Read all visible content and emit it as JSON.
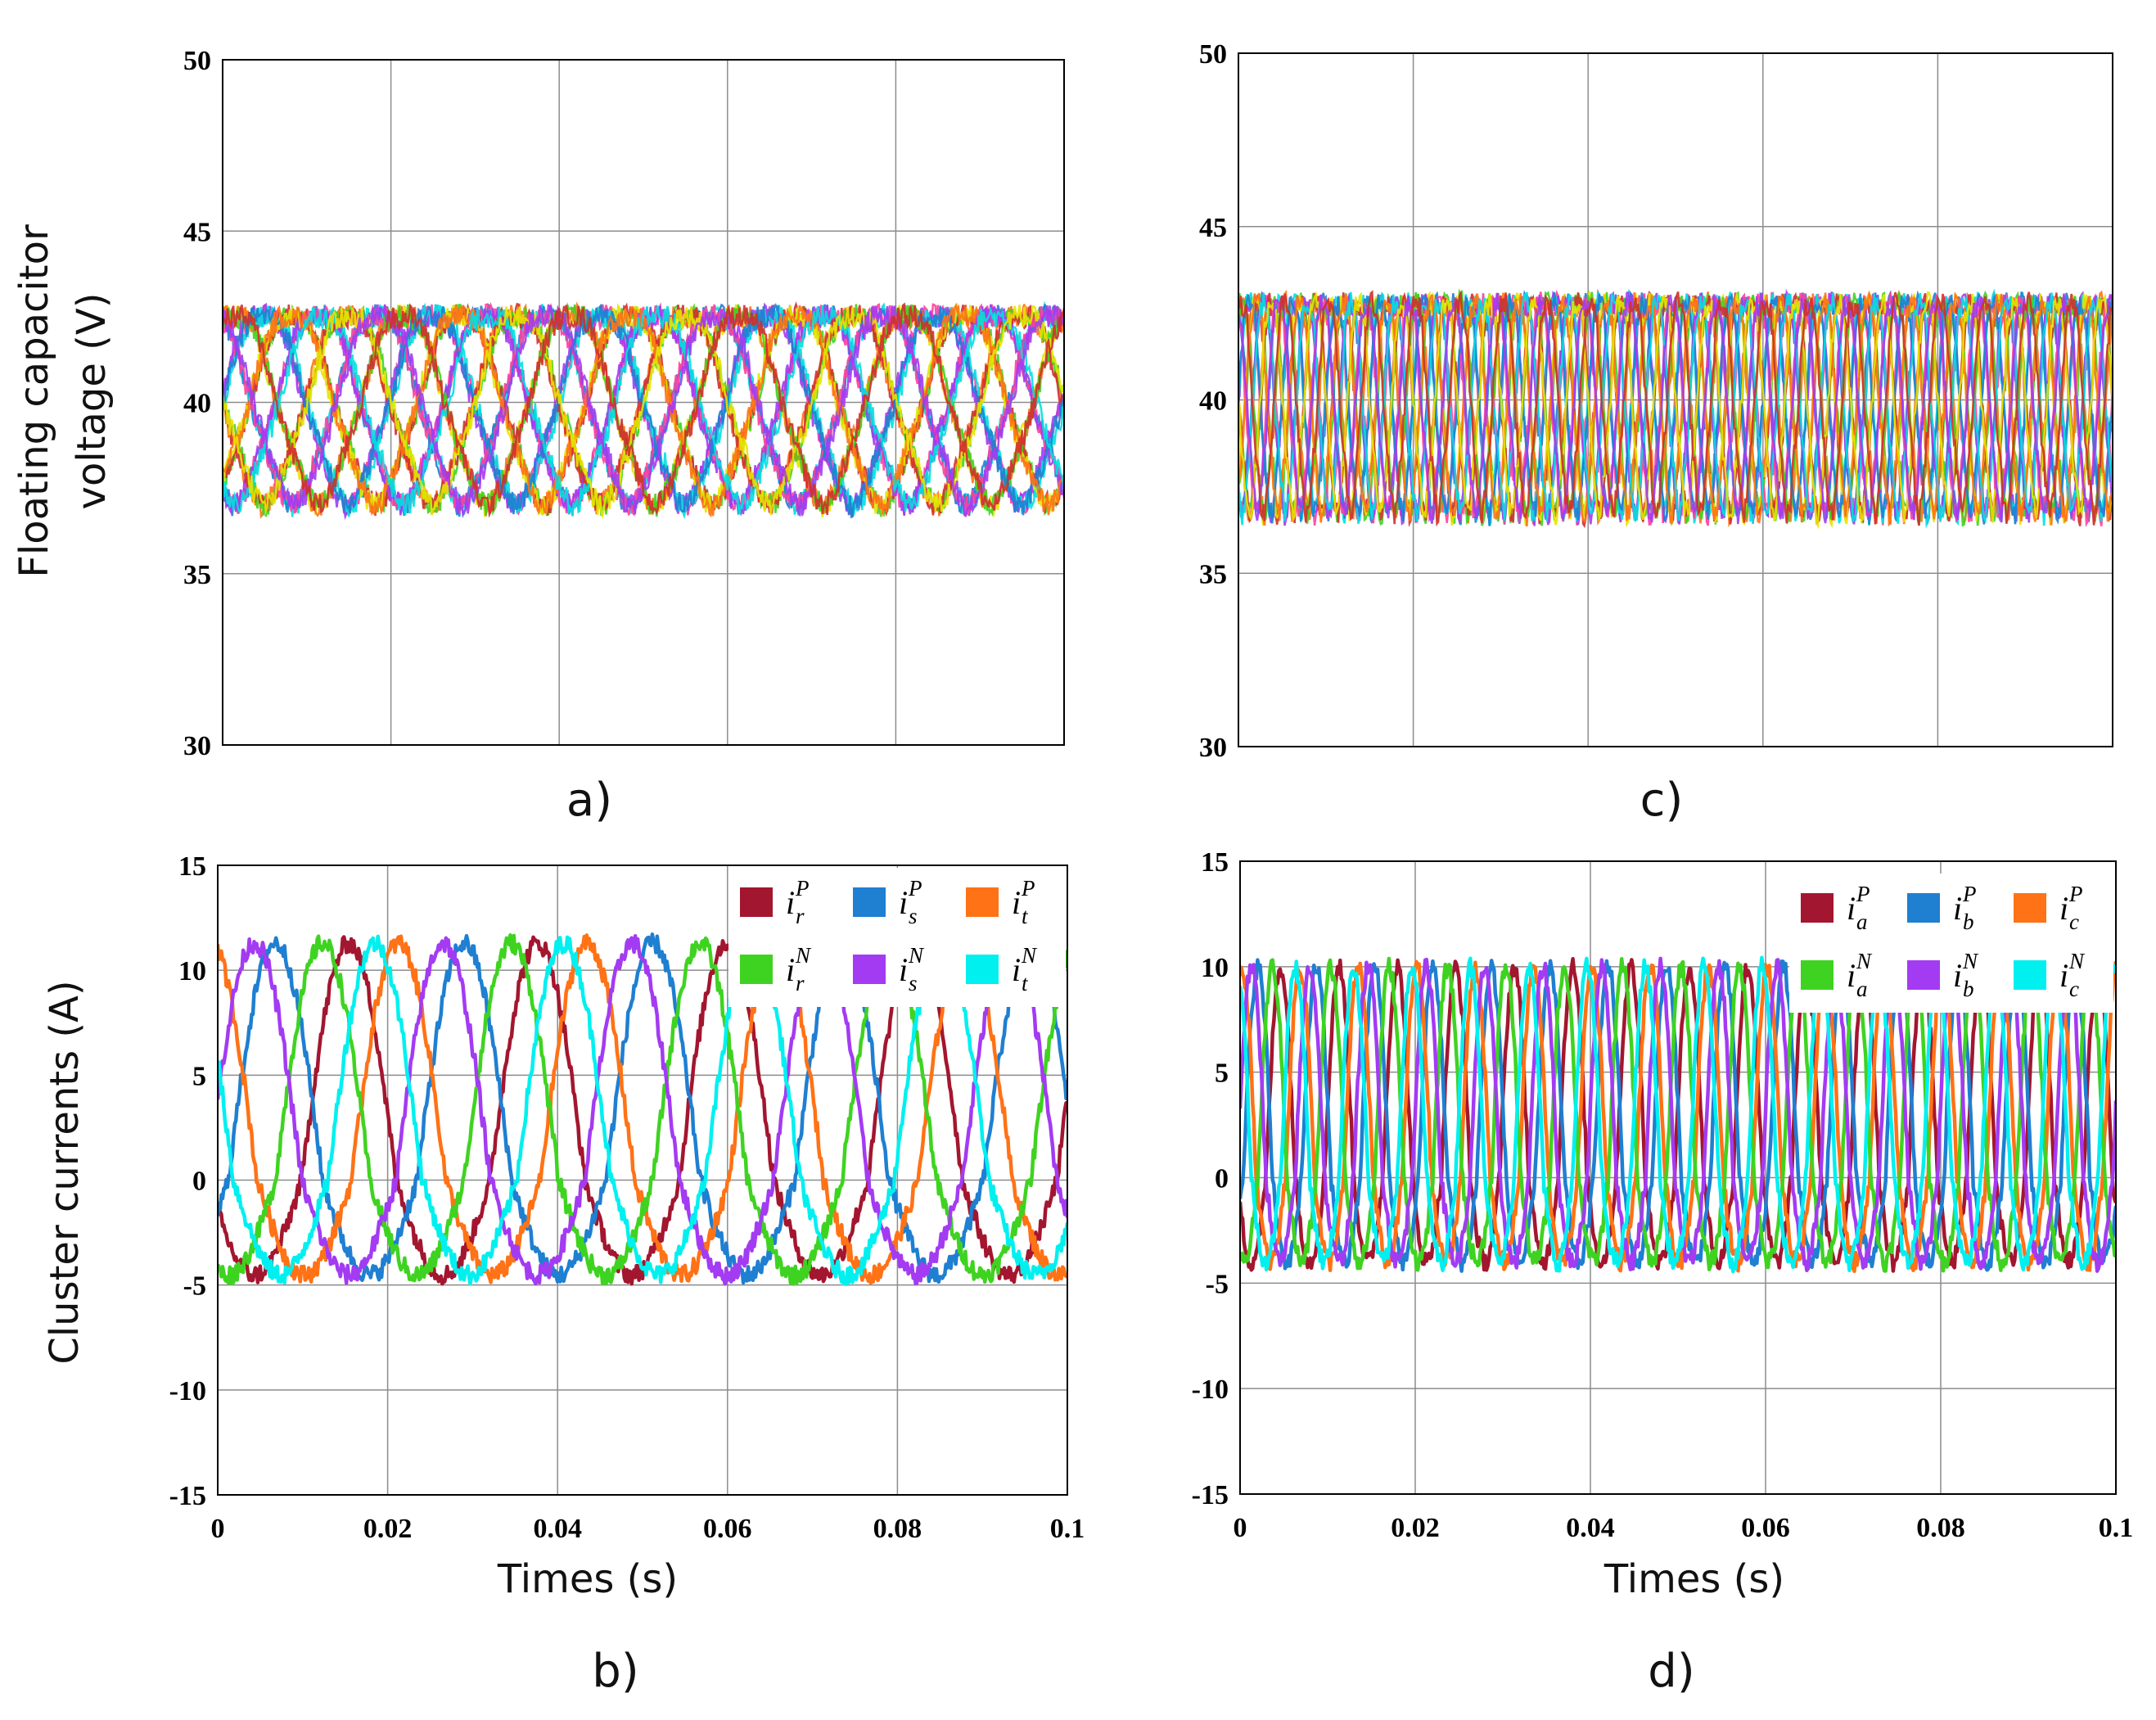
{
  "chart_data": [
    {
      "id": "a",
      "type": "line",
      "panel_label": "a)",
      "ylabel_line1": "Floating capacitor",
      "ylabel_line2": "voltage (V)",
      "xlabel": "",
      "xlim": [
        0,
        0.1
      ],
      "ylim": [
        30,
        50
      ],
      "yticks": [
        30,
        35,
        40,
        45,
        50
      ],
      "ytick_labels": [
        "30",
        "35",
        "40",
        "45",
        "50"
      ],
      "grid": true,
      "description_series": "floating capacitor voltages of all submodules",
      "ripple_freq_hz": 50,
      "dc_level": 40,
      "ripple_amplitude": 3,
      "legend": []
    },
    {
      "id": "b",
      "type": "line",
      "panel_label": "b)",
      "ylabel": "Cluster currents (A)",
      "xlabel": "Times (s)",
      "xlim": [
        0,
        0.1
      ],
      "ylim": [
        -15,
        15
      ],
      "xticks": [
        0,
        0.02,
        0.04,
        0.06,
        0.08,
        0.1
      ],
      "xtick_labels": [
        "0",
        "0.02",
        "0.04",
        "0.06",
        "0.08",
        "0.1"
      ],
      "yticks": [
        -15,
        -10,
        -5,
        0,
        5,
        10,
        15
      ],
      "ytick_labels": [
        "-15",
        "-10",
        "-5",
        "0",
        "5",
        "10",
        "15"
      ],
      "grid": true,
      "freq_hz": 45,
      "series": [
        {
          "name": "i_r^P",
          "base": "i",
          "sub": "r",
          "sup": "P",
          "color": "#a3162f",
          "peak": 11.3,
          "phase_deg": 200
        },
        {
          "name": "i_s^P",
          "base": "i",
          "sub": "s",
          "sup": "P",
          "color": "#1f7fd1",
          "peak": 11.3,
          "phase_deg": 340
        },
        {
          "name": "i_t^P",
          "base": "i",
          "sub": "t",
          "sup": "P",
          "color": "#ff7216",
          "peak": 11.3,
          "phase_deg": 105
        },
        {
          "name": "i_r^N",
          "base": "i",
          "sub": "r",
          "sup": "N",
          "color": "#3fd321",
          "peak": 11.3,
          "phase_deg": 250
        },
        {
          "name": "i_s^N",
          "base": "i",
          "sub": "s",
          "sup": "N",
          "color": "#a33bf2",
          "peak": 11.3,
          "phase_deg": 20
        },
        {
          "name": "i_t^N",
          "base": "i",
          "sub": "t",
          "sup": "N",
          "color": "#00f0f0",
          "peak": 11.3,
          "phase_deg": 150
        }
      ]
    },
    {
      "id": "c",
      "type": "line",
      "panel_label": "c)",
      "ylabel": "",
      "xlabel": "",
      "xlim": [
        0,
        0.1
      ],
      "ylim": [
        30,
        50
      ],
      "yticks": [
        30,
        35,
        40,
        45,
        50
      ],
      "ytick_labels": [
        "30",
        "35",
        "40",
        "45",
        "50"
      ],
      "grid": true,
      "description_series": "floating capacitor voltages of all submodules",
      "ripple_freq_hz": 200,
      "dc_level": 40,
      "ripple_amplitude": 3.3,
      "legend": []
    },
    {
      "id": "d",
      "type": "line",
      "panel_label": "d)",
      "ylabel": "",
      "xlabel": "Times (s)",
      "xlim": [
        0,
        0.1
      ],
      "ylim": [
        -15,
        15
      ],
      "xticks": [
        0,
        0.02,
        0.04,
        0.06,
        0.08,
        0.1
      ],
      "xtick_labels": [
        "0",
        "0.02",
        "0.04",
        "0.06",
        "0.08",
        "0.1"
      ],
      "yticks": [
        -15,
        -10,
        -5,
        0,
        5,
        10,
        15
      ],
      "ytick_labels": [
        "-15",
        "-10",
        "-5",
        "0",
        "5",
        "10",
        "15"
      ],
      "grid": true,
      "freq_hz": 150,
      "series": [
        {
          "name": "i_a^P",
          "base": "i",
          "sub": "a",
          "sup": "P",
          "color": "#a3162f",
          "peak": 10,
          "phase_deg": 200
        },
        {
          "name": "i_b^P",
          "base": "i",
          "sub": "b",
          "sup": "P",
          "color": "#1f7fd1",
          "peak": 10,
          "phase_deg": 340
        },
        {
          "name": "i_c^P",
          "base": "i",
          "sub": "c",
          "sup": "P",
          "color": "#ff7216",
          "peak": 10,
          "phase_deg": 80
        },
        {
          "name": "i_a^N",
          "base": "i",
          "sub": "a",
          "sup": "N",
          "color": "#3fd321",
          "peak": 10,
          "phase_deg": 250
        },
        {
          "name": "i_b^N",
          "base": "i",
          "sub": "b",
          "sup": "N",
          "color": "#a33bf2",
          "peak": 10,
          "phase_deg": 20
        },
        {
          "name": "i_c^N",
          "base": "i",
          "sub": "c",
          "sup": "N",
          "color": "#00f0f0",
          "peak": 10,
          "phase_deg": 110
        }
      ]
    }
  ],
  "voltage_trace_colors": [
    "#ff3fa0",
    "#3fd321",
    "#1f7fd1",
    "#ff7216",
    "#00e0e0",
    "#e6e600",
    "#a33bf2",
    "#d12f2f"
  ]
}
